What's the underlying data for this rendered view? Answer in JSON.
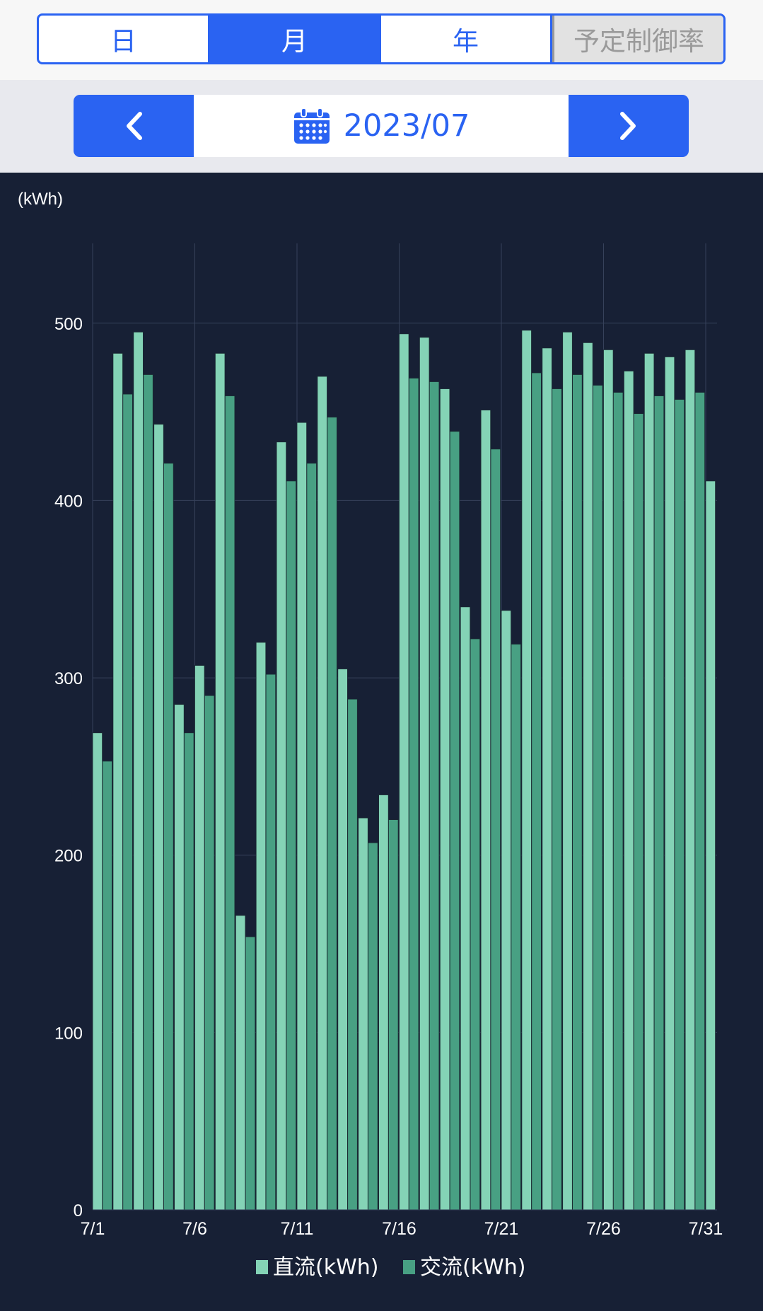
{
  "tabs": [
    {
      "label": "日"
    },
    {
      "label": "月"
    },
    {
      "label": "年"
    },
    {
      "label": "予定制御率"
    }
  ],
  "date_nav": {
    "date": "2023/07",
    "icons": [
      "chevron-left-icon",
      "calendar-icon",
      "chevron-right-icon"
    ]
  },
  "colors": {
    "accent": "#2a63f2",
    "chart_bg": "#172035",
    "dc": "#84d3b6",
    "ac": "#48a083"
  },
  "chart_data": {
    "type": "bar",
    "ylabel": "(kWh)",
    "ylim": [
      0,
      545
    ],
    "yticks": [
      0,
      100,
      200,
      300,
      400,
      500
    ],
    "x_tick_labels": [
      {
        "day": 1,
        "label": "7/1"
      },
      {
        "day": 6,
        "label": "7/6"
      },
      {
        "day": 11,
        "label": "7/11"
      },
      {
        "day": 16,
        "label": "7/16"
      },
      {
        "day": 21,
        "label": "7/21"
      },
      {
        "day": 26,
        "label": "7/26"
      },
      {
        "day": 31,
        "label": "7/31"
      }
    ],
    "days": [
      1,
      2,
      3,
      4,
      5,
      6,
      7,
      8,
      9,
      10,
      11,
      12,
      13,
      14,
      15,
      16,
      17,
      18,
      19,
      20,
      21,
      22,
      23,
      24,
      25,
      26,
      27,
      28,
      29,
      30,
      31
    ],
    "grid": true,
    "legend_position": "bottom",
    "series": [
      {
        "name": "直流(kWh)",
        "values": [
          269,
          483,
          495,
          443,
          285,
          307,
          483,
          166,
          320,
          433,
          444,
          470,
          305,
          221,
          234,
          494,
          492,
          463,
          340,
          451,
          338,
          496,
          486,
          495,
          489,
          485,
          473,
          483,
          481,
          485,
          411
        ]
      },
      {
        "name": "交流(kWh)",
        "values": [
          253,
          460,
          471,
          421,
          269,
          290,
          459,
          154,
          302,
          411,
          421,
          447,
          288,
          207,
          220,
          469,
          467,
          439,
          322,
          429,
          319,
          472,
          463,
          471,
          465,
          461,
          449,
          459,
          457,
          461,
          null
        ]
      }
    ]
  }
}
